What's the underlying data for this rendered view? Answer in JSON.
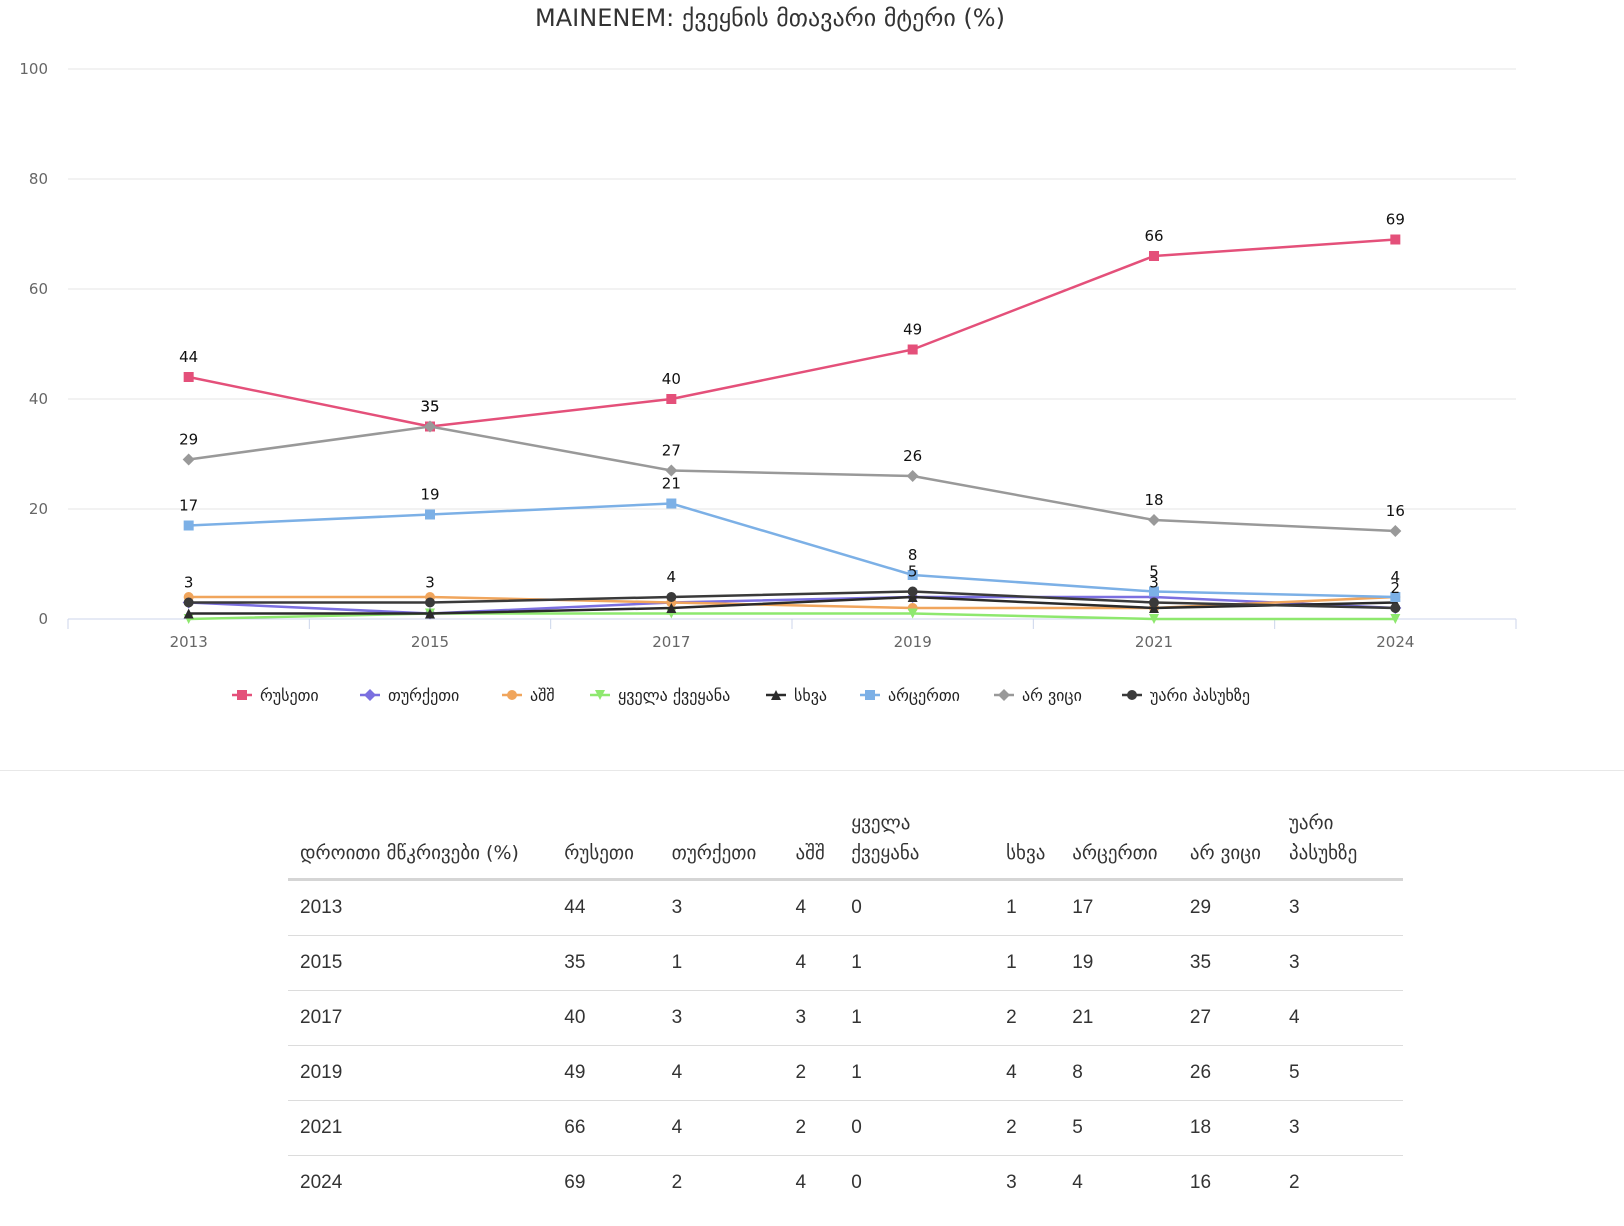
{
  "chart_data": {
    "type": "line",
    "title": "MAINENEM: ქვეყნის მთავარი მტერი (%)",
    "x": [
      "2013",
      "2015",
      "2017",
      "2019",
      "2021",
      "2024"
    ],
    "ylim": [
      0,
      100
    ],
    "yticks": [
      0,
      20,
      40,
      60,
      80,
      100
    ],
    "grid": true,
    "legend_position": "bottom",
    "series": [
      {
        "name": "რუსეთი",
        "values": [
          44,
          35,
          40,
          49,
          66,
          69
        ],
        "color": "#e4507a",
        "marker": "square",
        "show_labels": true
      },
      {
        "name": "თურქეთი",
        "values": [
          3,
          1,
          3,
          4,
          4,
          2
        ],
        "color": "#7b6fe0",
        "marker": "diamond",
        "show_labels": false
      },
      {
        "name": "აშშ",
        "values": [
          4,
          4,
          3,
          2,
          2,
          4
        ],
        "color": "#f0a55c",
        "marker": "circle",
        "show_labels": false
      },
      {
        "name": "ყველა ქვეყანა",
        "values": [
          0,
          1,
          1,
          1,
          0,
          0
        ],
        "color": "#8ee86e",
        "marker": "triangle-down",
        "show_labels": false
      },
      {
        "name": "სხვა",
        "values": [
          1,
          1,
          2,
          4,
          2,
          3
        ],
        "color": "#2b2b2b",
        "marker": "triangle",
        "show_labels": false
      },
      {
        "name": "არცერთი",
        "values": [
          17,
          19,
          21,
          8,
          5,
          4
        ],
        "color": "#7cb0e6",
        "marker": "square",
        "show_labels": true
      },
      {
        "name": "არ ვიცი",
        "values": [
          29,
          35,
          27,
          26,
          18,
          16
        ],
        "color": "#999999",
        "marker": "diamond",
        "show_labels": true
      },
      {
        "name": "უარი პასუხზე",
        "values": [
          3,
          3,
          4,
          5,
          3,
          2
        ],
        "color": "#3a3a3a",
        "marker": "circle",
        "show_labels": true
      }
    ]
  },
  "table": {
    "headers": [
      "დროითი მწკრივები (%)",
      "რუსეთი",
      "თურქეთი",
      "აშშ",
      "ყველა ქვეყანა",
      "სხვა",
      "არცერთი",
      "არ ვიცი",
      "უარი პასუხზე"
    ],
    "rows": [
      [
        "2013",
        "44",
        "3",
        "4",
        "0",
        "1",
        "17",
        "29",
        "3"
      ],
      [
        "2015",
        "35",
        "1",
        "4",
        "1",
        "1",
        "19",
        "35",
        "3"
      ],
      [
        "2017",
        "40",
        "3",
        "3",
        "1",
        "2",
        "21",
        "27",
        "4"
      ],
      [
        "2019",
        "49",
        "4",
        "2",
        "1",
        "4",
        "8",
        "26",
        "5"
      ],
      [
        "2021",
        "66",
        "4",
        "2",
        "0",
        "2",
        "5",
        "18",
        "3"
      ],
      [
        "2024",
        "69",
        "2",
        "4",
        "0",
        "3",
        "4",
        "16",
        "2"
      ]
    ]
  }
}
